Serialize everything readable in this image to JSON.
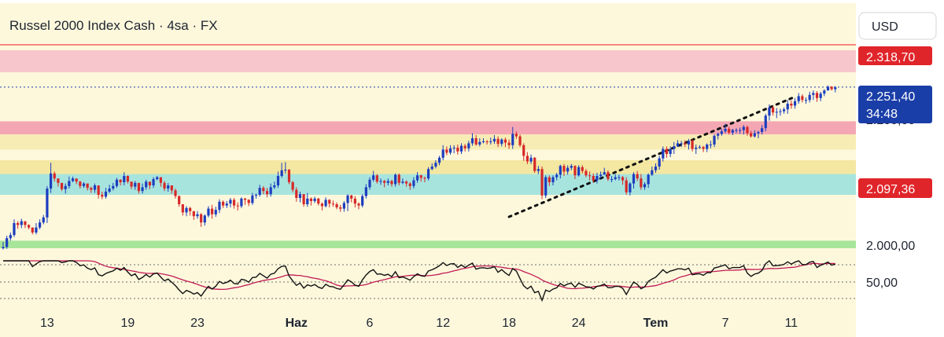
{
  "header": {
    "title": "Russel 2000 Index Cash · 4sa · FX"
  },
  "currency_button": {
    "label": "USD"
  },
  "colors": {
    "up": "#1c3dbf",
    "down": "#d62828",
    "resistance": "#f26060",
    "pink_zone": "#f7c6cc",
    "teal_zone": "#a8e4de",
    "yellow_zone": "#f6eeb0",
    "green_zone": "#a6e59a",
    "rsi_line": "#111111",
    "rsi_ma": "#c21a55",
    "price_tag": "#1a3ea8",
    "level_tag": "#e0252a"
  },
  "price_tags": {
    "resistance": {
      "value": 2318.7,
      "label": "2.318,70"
    },
    "current": {
      "value": 2251.4,
      "label": "2.251,40",
      "countdown": "34:48"
    },
    "level": {
      "value": 2097.36,
      "label": "2.097,36"
    }
  },
  "chart_data": {
    "type": "candlestick",
    "title": "Russel 2000 Index Cash · 4sa · FX",
    "x_ticks": [
      {
        "label": "13",
        "index": 12
      },
      {
        "label": "19",
        "index": 34
      },
      {
        "label": "23",
        "index": 53
      },
      {
        "label": "Haz",
        "index": 80,
        "bold": true
      },
      {
        "label": "6",
        "index": 100
      },
      {
        "label": "12",
        "index": 120
      },
      {
        "label": "18",
        "index": 138
      },
      {
        "label": "24",
        "index": 157
      },
      {
        "label": "Tem",
        "index": 178,
        "bold": true
      },
      {
        "label": "7",
        "index": 197
      },
      {
        "label": "11",
        "index": 215
      }
    ],
    "y_axis": {
      "ylim": [
        1975,
        2340
      ],
      "ticks": [
        {
          "value": 2300,
          "label": "2.300,00"
        },
        {
          "value": 2200,
          "label": "2.200,00"
        },
        {
          "value": 2000,
          "label": "2.000,00"
        }
      ]
    },
    "zones": [
      {
        "name": "upper-resistance-zone",
        "from": 2275,
        "to": 2310,
        "color": "#f7c6cc"
      },
      {
        "name": "middle-resistance-zone",
        "from": 2176,
        "to": 2197,
        "color": "#f4a7b3"
      },
      {
        "name": "light-yellow-zone",
        "from": 2152,
        "to": 2176,
        "color": "#f7edb4"
      },
      {
        "name": "yellow-zone",
        "from": 2110,
        "to": 2135,
        "color": "#f3e7a1"
      },
      {
        "name": "support-zone",
        "from": 2080,
        "to": 2113,
        "color": "#a8e4de"
      },
      {
        "name": "green-zone",
        "from": 1995,
        "to": 2007,
        "color": "#a6e59a"
      }
    ],
    "lines": [
      {
        "name": "resistance-line",
        "value": 2318.7,
        "color": "#f26060"
      },
      {
        "name": "current-price-line",
        "value": 2251.4,
        "color": "#1a3ea8"
      }
    ],
    "trendline": {
      "from": {
        "index": 138,
        "value": 2045
      },
      "to": {
        "index": 216,
        "value": 2236
      }
    },
    "candles": {
      "start": 1995,
      "closes": [
        1997,
        2011,
        2016,
        2035,
        2032,
        2038,
        2032,
        2028,
        2020,
        2028,
        2036,
        2044,
        2090,
        2114,
        2106,
        2099,
        2089,
        2094,
        2102,
        2106,
        2101,
        2094,
        2098,
        2091,
        2088,
        2095,
        2080,
        2077,
        2085,
        2090,
        2094,
        2104,
        2100,
        2110,
        2101,
        2093,
        2099,
        2086,
        2092,
        2101,
        2095,
        2105,
        2108,
        2099,
        2090,
        2095,
        2087,
        2078,
        2065,
        2052,
        2059,
        2054,
        2046,
        2049,
        2036,
        2047,
        2058,
        2049,
        2056,
        2069,
        2063,
        2066,
        2072,
        2063,
        2062,
        2074,
        2072,
        2067,
        2079,
        2080,
        2091,
        2086,
        2081,
        2092,
        2095,
        2110,
        2119,
        2120,
        2100,
        2088,
        2075,
        2081,
        2065,
        2074,
        2070,
        2074,
        2066,
        2062,
        2072,
        2066,
        2065,
        2060,
        2058,
        2067,
        2079,
        2074,
        2066,
        2063,
        2078,
        2092,
        2104,
        2111,
        2101,
        2102,
        2099,
        2102,
        2097,
        2112,
        2099,
        2101,
        2098,
        2094,
        2103,
        2111,
        2107,
        2106,
        2121,
        2125,
        2131,
        2139,
        2152,
        2147,
        2154,
        2155,
        2149,
        2158,
        2154,
        2162,
        2170,
        2160,
        2164,
        2165,
        2164,
        2165,
        2169,
        2161,
        2168,
        2163,
        2159,
        2177,
        2173,
        2159,
        2142,
        2133,
        2139,
        2118,
        2121,
        2079,
        2108,
        2100,
        2108,
        2112,
        2126,
        2117,
        2123,
        2126,
        2111,
        2124,
        2118,
        2111,
        2110,
        2103,
        2110,
        2112,
        2116,
        2105,
        2105,
        2108,
        2108,
        2103,
        2084,
        2098,
        2113,
        2106,
        2092,
        2097,
        2112,
        2119,
        2125,
        2138,
        2153,
        2145,
        2153,
        2157,
        2162,
        2162,
        2160,
        2166,
        2153,
        2155,
        2156,
        2153,
        2160,
        2160,
        2174,
        2177,
        2181,
        2185,
        2179,
        2183,
        2183,
        2183,
        2188,
        2178,
        2173,
        2178,
        2180,
        2186,
        2206,
        2219,
        2211,
        2212,
        2213,
        2216,
        2225,
        2222,
        2229,
        2237,
        2231,
        2231,
        2239,
        2242,
        2234,
        2241,
        2246,
        2252,
        2248,
        2251
      ],
      "highs": [
        2005,
        2015,
        2020,
        2041,
        2038,
        2042,
        2037,
        2033,
        2028,
        2035,
        2041,
        2048,
        2094,
        2131,
        2117,
        2103,
        2096,
        2098,
        2109,
        2109,
        2105,
        2102,
        2100,
        2097,
        2093,
        2098,
        2095,
        2085,
        2091,
        2096,
        2099,
        2107,
        2105,
        2116,
        2111,
        2101,
        2102,
        2098,
        2098,
        2104,
        2100,
        2108,
        2110,
        2107,
        2102,
        2099,
        2093,
        2090,
        2079,
        2063,
        2062,
        2061,
        2054,
        2054,
        2051,
        2049,
        2062,
        2064,
        2061,
        2073,
        2071,
        2070,
        2075,
        2075,
        2068,
        2076,
        2075,
        2073,
        2083,
        2082,
        2096,
        2094,
        2091,
        2098,
        2101,
        2117,
        2131,
        2132,
        2121,
        2102,
        2092,
        2085,
        2081,
        2083,
        2076,
        2077,
        2075,
        2068,
        2076,
        2073,
        2071,
        2068,
        2064,
        2070,
        2081,
        2080,
        2078,
        2068,
        2081,
        2097,
        2108,
        2118,
        2113,
        2106,
        2104,
        2106,
        2104,
        2114,
        2114,
        2106,
        2103,
        2100,
        2108,
        2116,
        2112,
        2109,
        2124,
        2130,
        2135,
        2142,
        2159,
        2157,
        2159,
        2159,
        2160,
        2162,
        2161,
        2166,
        2178,
        2175,
        2170,
        2170,
        2167,
        2171,
        2175,
        2173,
        2170,
        2171,
        2168,
        2188,
        2181,
        2176,
        2162,
        2148,
        2144,
        2140,
        2126,
        2125,
        2111,
        2111,
        2111,
        2115,
        2128,
        2129,
        2127,
        2129,
        2127,
        2127,
        2127,
        2121,
        2117,
        2114,
        2115,
        2117,
        2123,
        2119,
        2110,
        2113,
        2112,
        2110,
        2108,
        2100,
        2116,
        2118,
        2113,
        2100,
        2114,
        2125,
        2130,
        2142,
        2157,
        2157,
        2157,
        2164,
        2167,
        2166,
        2167,
        2169,
        2169,
        2160,
        2159,
        2158,
        2162,
        2166,
        2176,
        2179,
        2185,
        2193,
        2188,
        2185,
        2186,
        2187,
        2191,
        2190,
        2182,
        2183,
        2182,
        2191,
        2209,
        2224,
        2221,
        2218,
        2217,
        2219,
        2231,
        2230,
        2234,
        2242,
        2240,
        2235,
        2244,
        2246,
        2245,
        2244,
        2248,
        2254,
        2253,
        2253
      ],
      "lows": [
        1993,
        1994,
        2007,
        2013,
        2026,
        2027,
        2027,
        2025,
        2017,
        2017,
        2025,
        2033,
        2035,
        2083,
        2101,
        2093,
        2086,
        2082,
        2090,
        2100,
        2097,
        2090,
        2091,
        2087,
        2083,
        2083,
        2074,
        2073,
        2074,
        2083,
        2087,
        2091,
        2095,
        2095,
        2098,
        2089,
        2088,
        2082,
        2082,
        2088,
        2089,
        2091,
        2103,
        2093,
        2086,
        2085,
        2082,
        2074,
        2061,
        2047,
        2046,
        2047,
        2040,
        2042,
        2029,
        2031,
        2044,
        2042,
        2045,
        2051,
        2059,
        2059,
        2060,
        2058,
        2055,
        2059,
        2064,
        2062,
        2064,
        2074,
        2077,
        2081,
        2076,
        2077,
        2089,
        2091,
        2107,
        2114,
        2097,
        2084,
        2069,
        2068,
        2061,
        2061,
        2063,
        2067,
        2063,
        2055,
        2060,
        2060,
        2061,
        2057,
        2053,
        2053,
        2054,
        2068,
        2060,
        2057,
        2060,
        2074,
        2088,
        2101,
        2098,
        2096,
        2092,
        2095,
        2093,
        2093,
        2095,
        2097,
        2093,
        2088,
        2090,
        2099,
        2101,
        2100,
        2103,
        2119,
        2122,
        2127,
        2135,
        2143,
        2144,
        2146,
        2144,
        2145,
        2149,
        2149,
        2158,
        2158,
        2157,
        2162,
        2160,
        2160,
        2161,
        2156,
        2157,
        2156,
        2153,
        2153,
        2169,
        2156,
        2134,
        2129,
        2129,
        2115,
        2113,
        2073,
        2075,
        2094,
        2095,
        2103,
        2106,
        2110,
        2112,
        2119,
        2105,
        2109,
        2114,
        2108,
        2103,
        2099,
        2098,
        2106,
        2112,
        2102,
        2100,
        2103,
        2103,
        2096,
        2080,
        2079,
        2090,
        2102,
        2088,
        2088,
        2091,
        2110,
        2115,
        2120,
        2133,
        2139,
        2140,
        2145,
        2156,
        2156,
        2156,
        2152,
        2149,
        2145,
        2153,
        2148,
        2148,
        2154,
        2156,
        2168,
        2174,
        2178,
        2176,
        2175,
        2178,
        2177,
        2176,
        2174,
        2171,
        2171,
        2170,
        2176,
        2181,
        2198,
        2206,
        2202,
        2206,
        2209,
        2209,
        2217,
        2217,
        2225,
        2227,
        2225,
        2227,
        2231,
        2228,
        2229,
        2237,
        2246,
        2246,
        2243
      ]
    },
    "rsi": {
      "reference_label": "50,00",
      "reference_value": 50
    }
  }
}
